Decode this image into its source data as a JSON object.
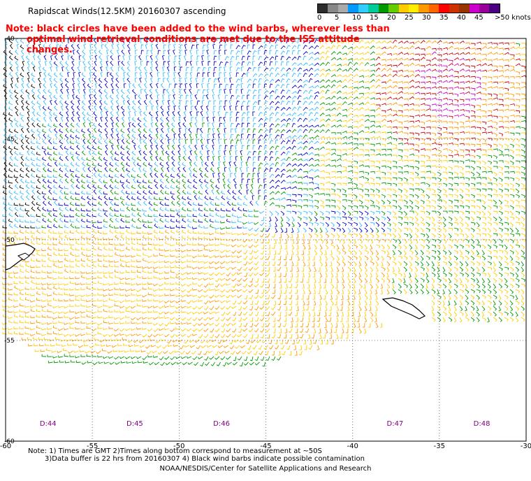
{
  "title": "Rapidscat Winds(12.5KM) 20160307 ascending",
  "colorbar": {
    "colors": [
      "#2c2c2c",
      "#888888",
      "#aaaaaa",
      "#0099ff",
      "#33ccff",
      "#00cc99",
      "#009900",
      "#66cc00",
      "#ffcc00",
      "#ffee00",
      "#ff9900",
      "#ff6600",
      "#ff0000",
      "#cc3300",
      "#993300",
      "#cc00cc",
      "#990099",
      "#4b0082"
    ],
    "labels": [
      "0",
      "5",
      "10",
      "15",
      "20",
      "25",
      "30",
      "35",
      "40",
      "45",
      ">50 knots"
    ]
  },
  "note": {
    "line1": "Note: black circles have been added to the wind barbs, wherever less than",
    "line2": "optimal wind retrieval conditions are met due to the ISS attitude changes."
  },
  "chart_data": {
    "type": "map",
    "lon_range": [
      -60,
      -30
    ],
    "lat_range": [
      -60,
      -40
    ],
    "grid": true,
    "lat_ticks": [
      "-40",
      "-45",
      "-50",
      "-55",
      "-60"
    ],
    "lon_ticks": [
      "-60",
      "-55",
      "-50",
      "-45",
      "-40",
      "-35",
      "-30"
    ],
    "times": [
      {
        "label": "D:44",
        "lon": -59
      },
      {
        "label": "D:45",
        "lon": -54
      },
      {
        "label": "D:46",
        "lon": -49
      },
      {
        "label": "D:47",
        "lon": -39
      },
      {
        "label": "D:48",
        "lon": -34
      }
    ],
    "barb_colors": {
      "calm": "#000000",
      "light": "#33bbff",
      "moderate": "#0000cc",
      "fresh": "#009900",
      "strong": "#ffcc00",
      "gale": "#ff9900",
      "storm": "#cc0000",
      "extreme": "#cc00cc"
    }
  },
  "footer": {
    "line1": "Note: 1) Times are GMT 2)Times along bottom correspond to measurement at ~50S",
    "line2": "3)Data buffer is 22 hrs from 20160307 4) Black wind barbs indicate possible contamination",
    "credit": "NOAA/NESDIS/Center for Satellite Applications and Research"
  }
}
